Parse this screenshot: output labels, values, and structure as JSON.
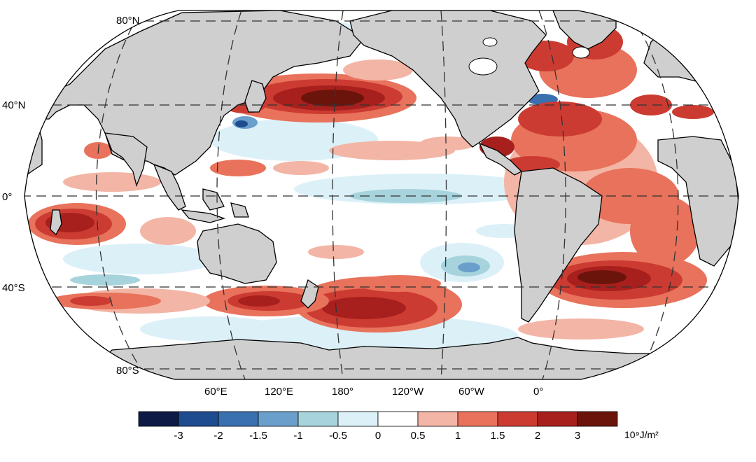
{
  "map": {
    "lat_labels": [
      "80°N",
      "40°N",
      "0°",
      "40°S",
      "80°S"
    ],
    "lon_labels": [
      "60°E",
      "120°E",
      "180°",
      "120°W",
      "60°W",
      "0°"
    ]
  },
  "colorbar": {
    "tick_labels": [
      "-3",
      "-2",
      "-1.5",
      "-1",
      "-0.5",
      "0",
      "0.5",
      "1",
      "1.5",
      "2",
      "3"
    ],
    "unit_label": "10⁹J/m²",
    "colors": [
      "#0d1a45",
      "#1f4b8f",
      "#3a70b0",
      "#6a9fcc",
      "#a7d4dc",
      "#dcf0f8",
      "#ffffff",
      "#f3b5a5",
      "#e8725b",
      "#cc3b32",
      "#a8201d",
      "#6b140c"
    ]
  },
  "colors": {
    "land": "#cfcfcf",
    "ocean": "#ffffff",
    "coast": "#000000"
  }
}
